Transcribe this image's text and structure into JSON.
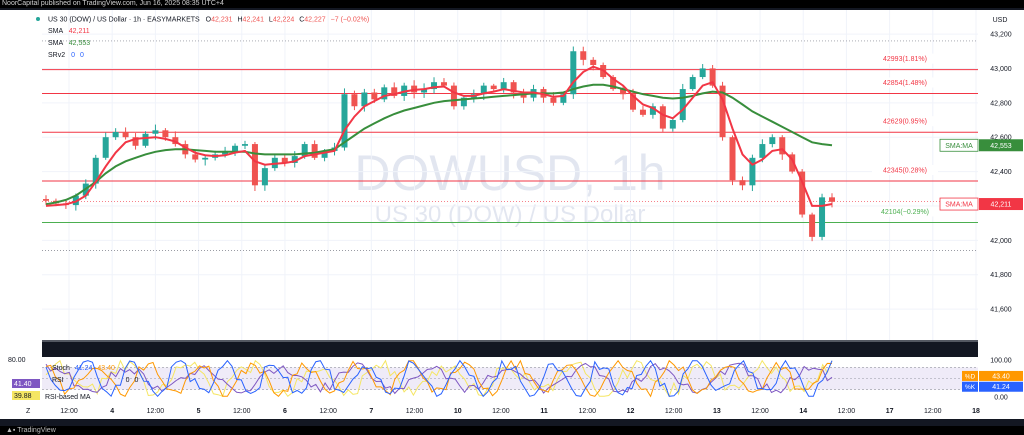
{
  "publisher_line": "NoorCapital published on TradingView.com, Jun 16, 2025 08:35 UTC+4",
  "legend": {
    "symbol": "US 30 (DOW) / US Dollar · 1h · EASYMARKETS",
    "o_label": "O",
    "o": "42,231",
    "h_label": "H",
    "h": "42,241",
    "l_label": "L",
    "l": "42,224",
    "c_label": "C",
    "c": "42,227",
    "change": "−7 (−0.02%)",
    "sma1_label": "SMA",
    "sma1": "42,211",
    "sma2_label": "SMA",
    "sma2": "42,553",
    "srv_label": "SRv2",
    "srv_a": "0",
    "srv_b": "0"
  },
  "watermark": {
    "main": "DOWUSD, 1h",
    "sub": "US 30 (DOW) / US Dollar"
  },
  "currency": "USD",
  "footer": {
    "brand": "TradingView",
    "zoom_btn": "Z"
  },
  "colors": {
    "bull": "#26a69a",
    "bear": "#ef5350",
    "sma_fast": "#f23645",
    "sma_slow": "#388e3c",
    "res_line": "#f23645",
    "sup_line": "#4caf50",
    "stoch_k": "#2962ff",
    "stoch_d": "#ff9800",
    "rsi": "#7e57c2",
    "rsi_ma": "#f5e663",
    "band": "#2a2850"
  },
  "chart_data": {
    "type": "candlestick",
    "y_range": [
      41420,
      43340
    ],
    "y_ticks": [
      "43,200",
      "43,000",
      "42,800",
      "42,600",
      "42,400",
      "42,200",
      "42,000",
      "41,800",
      "41,600"
    ],
    "y_tick_values": [
      43200,
      43000,
      42800,
      42600,
      42400,
      42200,
      42000,
      41800,
      41600
    ],
    "x_ticks": [
      "12:00",
      "4",
      "12:00",
      "5",
      "12:00",
      "6",
      "12:00",
      "7",
      "12:00",
      "10",
      "12:00",
      "11",
      "12:00",
      "12",
      "12:00",
      "13",
      "12:00",
      "14",
      "12:00",
      "17",
      "12:00",
      "18"
    ],
    "levels": [
      {
        "price": 42993,
        "label": "42993(1.81%)",
        "kind": "resistance"
      },
      {
        "price": 42854,
        "label": "42854(1.48%)",
        "kind": "resistance"
      },
      {
        "price": 42629,
        "label": "42629(0.95%)",
        "kind": "resistance"
      },
      {
        "price": 42345,
        "label": "42345(0.28%)",
        "kind": "resistance"
      },
      {
        "price": 42104,
        "label": "42104(−0.29%)",
        "kind": "support"
      }
    ],
    "price_tags": [
      {
        "label": "SMA:MA",
        "value": "42,553",
        "price": 42553,
        "color": "#388e3c"
      },
      {
        "label": "SMA:MA",
        "value": "42,211",
        "price": 42211,
        "color": "#f23645"
      }
    ],
    "close_path": [
      42230,
      42215,
      42205,
      42260,
      42330,
      42480,
      42600,
      42630,
      42600,
      42550,
      42620,
      42640,
      42600,
      42560,
      42500,
      42470,
      42480,
      42500,
      42520,
      42550,
      42560,
      42320,
      42420,
      42480,
      42450,
      42490,
      42560,
      42480,
      42520,
      42540,
      42850,
      42780,
      42860,
      42820,
      42890,
      42840,
      42900,
      42860,
      42880,
      42920,
      42900,
      42780,
      42830,
      42850,
      42900,
      42880,
      42920,
      42860,
      42830,
      42880,
      42830,
      42800,
      42850,
      43100,
      43050,
      43020,
      42950,
      42880,
      42850,
      42760,
      42730,
      42780,
      42650,
      42700,
      42880,
      42950,
      43000,
      42900,
      42600,
      42350,
      42320,
      42480,
      42560,
      42600,
      42500,
      42400,
      42150,
      42020,
      42250,
      42224
    ],
    "sma_fast_path": [
      42200,
      42205,
      42210,
      42225,
      42260,
      42340,
      42430,
      42510,
      42570,
      42590,
      42595,
      42600,
      42590,
      42575,
      42540,
      42510,
      42495,
      42490,
      42495,
      42510,
      42520,
      42460,
      42440,
      42445,
      42450,
      42460,
      42490,
      42500,
      42510,
      42520,
      42640,
      42720,
      42780,
      42810,
      42840,
      42850,
      42865,
      42875,
      42880,
      42890,
      42895,
      42860,
      42840,
      42840,
      42855,
      42865,
      42880,
      42870,
      42860,
      42860,
      42850,
      42835,
      42840,
      42920,
      42980,
      43010,
      42990,
      42940,
      42900,
      42840,
      42790,
      42770,
      42730,
      42710,
      42760,
      42830,
      42900,
      42920,
      42820,
      42650,
      42500,
      42440,
      42470,
      42520,
      42530,
      42470,
      42340,
      42200,
      42200,
      42211
    ],
    "sma_slow_path": [
      42210,
      42220,
      42235,
      42260,
      42300,
      42340,
      42390,
      42430,
      42460,
      42480,
      42500,
      42515,
      42525,
      42530,
      42530,
      42525,
      42520,
      42515,
      42515,
      42515,
      42515,
      42505,
      42500,
      42500,
      42500,
      42500,
      42505,
      42510,
      42520,
      42530,
      42570,
      42610,
      42650,
      42680,
      42710,
      42735,
      42755,
      42770,
      42785,
      42800,
      42810,
      42815,
      42820,
      42825,
      42830,
      42835,
      42840,
      42845,
      42850,
      42855,
      42855,
      42855,
      42860,
      42880,
      42895,
      42905,
      42905,
      42895,
      42880,
      42865,
      42850,
      42840,
      42830,
      42825,
      42830,
      42840,
      42855,
      42865,
      42860,
      42830,
      42790,
      42750,
      42720,
      42690,
      42660,
      42630,
      42600,
      42570,
      42560,
      42553
    ],
    "stoch": {
      "label": "Stoch",
      "k": "41.24",
      "d": "43.40",
      "k_tag": "%K",
      "d_tag": "%D",
      "range": [
        0,
        100
      ],
      "ticks": [
        "100.00",
        "0.00"
      ]
    },
    "rsi": {
      "label": "RSI",
      "value": "41.40",
      "ma_label": "RSI-based MA",
      "ma_value": "39.88",
      "extra_a": "0",
      "extra_b": "0",
      "top_tick": "80.00"
    }
  }
}
